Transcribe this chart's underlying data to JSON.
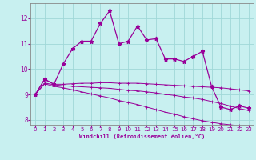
{
  "xlabel": "Windchill (Refroidissement éolien,°C)",
  "background_color": "#c8f0f0",
  "grid_color": "#a0d8d8",
  "line_color": "#990099",
  "x_values": [
    0,
    1,
    2,
    3,
    4,
    5,
    6,
    7,
    8,
    9,
    10,
    11,
    12,
    13,
    14,
    15,
    16,
    17,
    18,
    19,
    20,
    21,
    22,
    23
  ],
  "series1": [
    9.0,
    9.6,
    9.4,
    10.2,
    10.8,
    11.1,
    11.1,
    11.8,
    12.3,
    11.0,
    11.1,
    11.7,
    11.15,
    11.2,
    10.4,
    10.4,
    10.3,
    10.5,
    10.7,
    9.3,
    8.5,
    8.4,
    8.55,
    8.45
  ],
  "series2": [
    9.0,
    9.6,
    9.4,
    9.4,
    9.42,
    9.44,
    9.44,
    9.46,
    9.46,
    9.44,
    9.44,
    9.44,
    9.42,
    9.4,
    9.38,
    9.36,
    9.34,
    9.32,
    9.3,
    9.28,
    9.26,
    9.22,
    9.18,
    9.14
  ],
  "series3": [
    9.0,
    9.45,
    9.38,
    9.34,
    9.32,
    9.3,
    9.28,
    9.26,
    9.24,
    9.2,
    9.16,
    9.14,
    9.1,
    9.06,
    9.0,
    8.96,
    8.9,
    8.86,
    8.8,
    8.72,
    8.64,
    8.54,
    8.44,
    8.36
  ],
  "series4": [
    9.0,
    9.42,
    9.32,
    9.26,
    9.18,
    9.1,
    9.02,
    8.94,
    8.86,
    8.76,
    8.68,
    8.6,
    8.5,
    8.4,
    8.3,
    8.22,
    8.12,
    8.04,
    7.96,
    7.9,
    7.84,
    7.8,
    7.76,
    7.74
  ],
  "ylim": [
    7.8,
    12.6
  ],
  "xlim": [
    -0.5,
    23.5
  ],
  "yticks": [
    8,
    9,
    10,
    11,
    12
  ],
  "xticks": [
    0,
    1,
    2,
    3,
    4,
    5,
    6,
    7,
    8,
    9,
    10,
    11,
    12,
    13,
    14,
    15,
    16,
    17,
    18,
    19,
    20,
    21,
    22,
    23
  ],
  "ytick_labels": [
    "8",
    "9",
    "10",
    "11",
    "12"
  ],
  "xtick_labels": [
    "0",
    "1",
    "2",
    "3",
    "4",
    "5",
    "6",
    "7",
    "8",
    "9",
    "10",
    "11",
    "12",
    "13",
    "14",
    "15",
    "16",
    "17",
    "18",
    "19",
    "20",
    "21",
    "22",
    "23"
  ]
}
